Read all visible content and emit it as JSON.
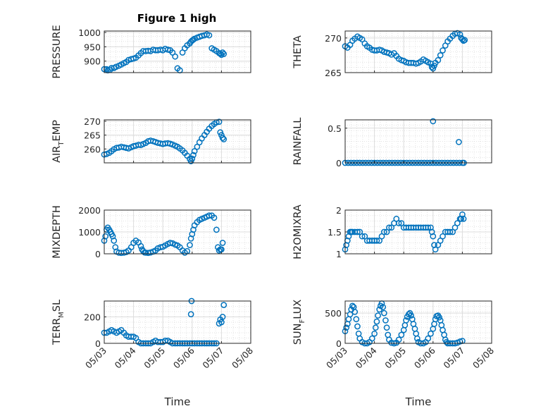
{
  "figure": {
    "title": "Figure 1 high"
  },
  "chart_data": [
    {
      "type": "scatter",
      "ylabel": "PRESSURE",
      "title": "Figure 1 high",
      "ylim": [
        860,
        1005
      ],
      "yticks": [
        900,
        950,
        1000
      ],
      "xlabel": "",
      "xticks": [
        "05/03",
        "05/04",
        "05/05",
        "05/06",
        "05/07",
        "05/08"
      ],
      "x": [
        3.0,
        3.08,
        3.12,
        3.2,
        3.25,
        3.33,
        3.4,
        3.5,
        3.58,
        3.67,
        3.75,
        3.83,
        3.92,
        4.0,
        4.08,
        4.17,
        4.25,
        4.33,
        4.42,
        4.5,
        4.58,
        4.67,
        4.75,
        4.83,
        4.92,
        5.0,
        5.08,
        5.17,
        5.25,
        5.33,
        5.42,
        5.5,
        5.58,
        5.67,
        5.75,
        5.83,
        5.92,
        5.96,
        6.0,
        6.04,
        6.08,
        6.17,
        6.25,
        6.33,
        6.42,
        6.5,
        6.58,
        6.67,
        6.75,
        6.83,
        6.92,
        6.96,
        7.0,
        7.04,
        7.08
      ],
      "y": [
        872,
        872,
        868,
        870,
        876,
        876,
        880,
        884,
        888,
        893,
        897,
        904,
        907,
        909,
        912,
        920,
        928,
        935,
        935,
        936,
        935,
        940,
        938,
        938,
        940,
        938,
        943,
        940,
        938,
        930,
        916,
        875,
        868,
        930,
        945,
        955,
        962,
        968,
        972,
        975,
        978,
        982,
        985,
        988,
        990,
        993,
        990,
        945,
        940,
        935,
        928,
        926,
        922,
        930,
        925
      ]
    },
    {
      "type": "scatter",
      "ylabel": "THETA",
      "ylim": [
        265,
        271
      ],
      "yticks": [
        265,
        270
      ],
      "xlabel": "",
      "xticks": [
        "05/03",
        "05/04",
        "05/05",
        "05/06",
        "05/07",
        "05/08"
      ],
      "x": [
        3.0,
        3.08,
        3.17,
        3.25,
        3.33,
        3.42,
        3.5,
        3.58,
        3.67,
        3.75,
        3.83,
        3.92,
        4.0,
        4.08,
        4.17,
        4.25,
        4.33,
        4.42,
        4.5,
        4.58,
        4.67,
        4.75,
        4.83,
        4.92,
        5.0,
        5.08,
        5.17,
        5.25,
        5.33,
        5.42,
        5.5,
        5.58,
        5.67,
        5.75,
        5.83,
        5.92,
        5.96,
        6.0,
        6.04,
        6.08,
        6.17,
        6.25,
        6.33,
        6.42,
        6.5,
        6.58,
        6.67,
        6.75,
        6.83,
        6.92,
        6.96,
        7.0,
        7.04,
        7.08
      ],
      "y": [
        268.8,
        268.6,
        269.0,
        269.6,
        269.9,
        270.2,
        270.0,
        269.8,
        269.2,
        268.8,
        268.6,
        268.3,
        268.2,
        268.2,
        268.3,
        268.2,
        268.0,
        267.9,
        267.8,
        267.6,
        267.8,
        267.4,
        267.0,
        266.8,
        266.7,
        266.5,
        266.4,
        266.4,
        266.4,
        266.3,
        266.4,
        266.6,
        266.9,
        266.7,
        266.5,
        266.3,
        265.8,
        265.6,
        266.0,
        266.4,
        266.8,
        267.5,
        268.2,
        268.9,
        269.5,
        269.9,
        270.3,
        270.6,
        270.7,
        270.5,
        270.0,
        269.8,
        269.6,
        269.7
      ]
    },
    {
      "type": "scatter",
      "ylabel": "AIR_TEMP",
      "ylim": [
        255,
        270.5
      ],
      "yticks": [
        260,
        265,
        270
      ],
      "xlabel": "",
      "xticks": [
        "05/03",
        "05/04",
        "05/05",
        "05/06",
        "05/07",
        "05/08"
      ],
      "x": [
        3.0,
        3.08,
        3.17,
        3.25,
        3.33,
        3.42,
        3.5,
        3.58,
        3.67,
        3.75,
        3.83,
        3.92,
        4.0,
        4.08,
        4.17,
        4.25,
        4.33,
        4.42,
        4.5,
        4.58,
        4.67,
        4.75,
        4.83,
        4.92,
        5.0,
        5.08,
        5.17,
        5.25,
        5.33,
        5.42,
        5.5,
        5.58,
        5.67,
        5.75,
        5.83,
        5.92,
        5.96,
        6.0,
        6.04,
        6.08,
        6.17,
        6.25,
        6.33,
        6.42,
        6.5,
        6.58,
        6.67,
        6.75,
        6.83,
        6.92,
        6.96,
        7.0,
        7.04,
        7.08
      ],
      "y": [
        258.0,
        258.2,
        258.6,
        259.2,
        259.9,
        260.4,
        260.5,
        260.8,
        260.6,
        260.4,
        260.2,
        260.6,
        261.0,
        261.2,
        261.5,
        261.4,
        261.8,
        262.2,
        262.8,
        263.0,
        262.8,
        262.5,
        262.2,
        262.0,
        261.8,
        262.0,
        262.1,
        261.9,
        261.6,
        261.2,
        260.8,
        260.2,
        259.5,
        258.6,
        257.6,
        256.4,
        255.6,
        256.5,
        257.8,
        259.2,
        260.8,
        262.4,
        263.8,
        265.0,
        266.2,
        267.3,
        268.3,
        269.0,
        269.6,
        269.8,
        266.0,
        265.0,
        264.0,
        263.5
      ]
    },
    {
      "type": "scatter",
      "ylabel": "RAINFALL",
      "ylim": [
        0,
        0.62
      ],
      "yticks": [
        0,
        0.5
      ],
      "xlabel": "",
      "xticks": [
        "05/03",
        "05/04",
        "05/05",
        "05/06",
        "05/07",
        "05/08"
      ],
      "x": [
        3.0,
        3.1,
        3.2,
        3.3,
        3.4,
        3.5,
        3.6,
        3.7,
        3.8,
        3.9,
        4.0,
        4.1,
        4.2,
        4.3,
        4.4,
        4.5,
        4.6,
        4.7,
        4.8,
        4.9,
        5.0,
        5.1,
        5.2,
        5.3,
        5.4,
        5.5,
        5.6,
        5.7,
        5.8,
        5.9,
        6.0,
        6.1,
        6.2,
        6.3,
        6.4,
        6.5,
        6.6,
        6.7,
        6.8,
        6.9,
        7.0,
        7.05,
        6.0,
        6.88
      ],
      "y": [
        0,
        0,
        0,
        0,
        0,
        0,
        0,
        0,
        0,
        0,
        0,
        0,
        0,
        0,
        0,
        0,
        0,
        0,
        0,
        0,
        0,
        0,
        0,
        0,
        0,
        0,
        0,
        0,
        0,
        0,
        0,
        0,
        0,
        0,
        0,
        0,
        0,
        0,
        0,
        0,
        0,
        0,
        0.6,
        0.3
      ]
    },
    {
      "type": "scatter",
      "ylabel": "MIXDEPTH",
      "ylim": [
        0,
        2000
      ],
      "yticks": [
        0,
        1000,
        2000
      ],
      "xlabel": "",
      "xticks": [
        "05/03",
        "05/04",
        "05/05",
        "05/06",
        "05/07",
        "05/08"
      ],
      "x": [
        3.0,
        3.04,
        3.08,
        3.12,
        3.17,
        3.21,
        3.25,
        3.29,
        3.33,
        3.38,
        3.42,
        3.5,
        3.58,
        3.67,
        3.75,
        3.83,
        3.92,
        4.0,
        4.08,
        4.17,
        4.25,
        4.29,
        4.33,
        4.38,
        4.42,
        4.5,
        4.58,
        4.67,
        4.75,
        4.83,
        4.92,
        5.0,
        5.08,
        5.17,
        5.25,
        5.33,
        5.42,
        5.5,
        5.58,
        5.67,
        5.75,
        5.83,
        5.92,
        5.96,
        6.0,
        6.04,
        6.08,
        6.17,
        6.25,
        6.33,
        6.42,
        6.5,
        6.58,
        6.67,
        6.75,
        6.83,
        6.88,
        6.92,
        6.96,
        7.0,
        7.04
      ],
      "y": [
        600,
        800,
        1100,
        1200,
        1100,
        1000,
        900,
        800,
        600,
        300,
        100,
        50,
        40,
        50,
        80,
        150,
        300,
        500,
        600,
        520,
        350,
        200,
        120,
        60,
        50,
        40,
        60,
        100,
        150,
        250,
        300,
        320,
        380,
        450,
        500,
        480,
        420,
        380,
        300,
        150,
        50,
        120,
        400,
        700,
        900,
        1100,
        1300,
        1450,
        1550,
        1600,
        1650,
        1700,
        1750,
        1750,
        1650,
        1100,
        300,
        150,
        200,
        200,
        500
      ]
    },
    {
      "type": "scatter",
      "ylabel": "H2OMIXRA",
      "ylim": [
        1,
        2
      ],
      "yticks": [
        1,
        1.5,
        2
      ],
      "xlabel": "",
      "xticks": [
        "05/03",
        "05/04",
        "05/05",
        "05/06",
        "05/07",
        "05/08"
      ],
      "x": [
        3.0,
        3.04,
        3.08,
        3.12,
        3.17,
        3.21,
        3.25,
        3.33,
        3.42,
        3.5,
        3.58,
        3.67,
        3.75,
        3.83,
        3.92,
        4.0,
        4.08,
        4.17,
        4.25,
        4.33,
        4.42,
        4.5,
        4.58,
        4.67,
        4.75,
        4.83,
        4.92,
        5.0,
        5.08,
        5.17,
        5.25,
        5.33,
        5.42,
        5.5,
        5.58,
        5.67,
        5.75,
        5.83,
        5.92,
        5.96,
        6.0,
        6.04,
        6.08,
        6.17,
        6.25,
        6.33,
        6.42,
        6.5,
        6.58,
        6.67,
        6.75,
        6.83,
        6.92,
        6.96,
        7.0,
        7.04
      ],
      "y": [
        1.1,
        1.2,
        1.3,
        1.4,
        1.5,
        1.5,
        1.5,
        1.5,
        1.5,
        1.5,
        1.4,
        1.4,
        1.3,
        1.3,
        1.3,
        1.3,
        1.3,
        1.3,
        1.4,
        1.5,
        1.5,
        1.6,
        1.6,
        1.7,
        1.8,
        1.7,
        1.7,
        1.6,
        1.6,
        1.6,
        1.6,
        1.6,
        1.6,
        1.6,
        1.6,
        1.6,
        1.6,
        1.6,
        1.6,
        1.5,
        1.4,
        1.2,
        1.1,
        1.2,
        1.3,
        1.4,
        1.5,
        1.5,
        1.5,
        1.5,
        1.6,
        1.7,
        1.8,
        1.8,
        1.9,
        1.8
      ]
    },
    {
      "type": "scatter",
      "ylabel": "TERR_MSL",
      "ylim": [
        0,
        320
      ],
      "yticks": [
        0,
        200
      ],
      "xlabel": "Time",
      "xticks": [
        "05/03",
        "05/04",
        "05/05",
        "05/06",
        "05/07",
        "05/08"
      ],
      "x": [
        3.0,
        3.08,
        3.17,
        3.25,
        3.33,
        3.42,
        3.5,
        3.58,
        3.67,
        3.75,
        3.83,
        3.92,
        4.0,
        4.08,
        4.17,
        4.25,
        4.33,
        4.42,
        4.5,
        4.58,
        4.67,
        4.75,
        4.83,
        4.92,
        5.0,
        5.08,
        5.17,
        5.25,
        5.33,
        5.42,
        5.5,
        5.58,
        5.67,
        5.75,
        5.83,
        5.92,
        6.0,
        6.08,
        6.17,
        6.25,
        6.33,
        6.42,
        6.5,
        6.58,
        6.67,
        6.75,
        6.83,
        5.96,
        5.98,
        6.92,
        6.96,
        7.0,
        7.04,
        7.08
      ],
      "y": [
        80,
        80,
        90,
        100,
        90,
        80,
        90,
        100,
        80,
        60,
        50,
        50,
        50,
        40,
        10,
        0,
        0,
        0,
        0,
        0,
        10,
        20,
        10,
        10,
        10,
        20,
        20,
        10,
        0,
        0,
        0,
        0,
        0,
        0,
        0,
        0,
        0,
        0,
        0,
        0,
        0,
        0,
        0,
        0,
        0,
        0,
        0,
        220,
        320,
        150,
        180,
        160,
        200,
        290
      ]
    },
    {
      "type": "scatter",
      "ylabel": "SUN_FLUX",
      "ylim": [
        0,
        700
      ],
      "yticks": [
        0,
        500
      ],
      "xlabel": "Time",
      "xticks": [
        "05/03",
        "05/04",
        "05/05",
        "05/06",
        "05/07",
        "05/08"
      ],
      "x": [
        3.0,
        3.04,
        3.08,
        3.12,
        3.17,
        3.21,
        3.25,
        3.29,
        3.33,
        3.38,
        3.42,
        3.46,
        3.5,
        3.58,
        3.67,
        3.75,
        3.83,
        3.92,
        4.0,
        4.04,
        4.08,
        4.12,
        4.17,
        4.21,
        4.25,
        4.29,
        4.33,
        4.38,
        4.42,
        4.46,
        4.5,
        4.58,
        4.67,
        4.75,
        4.83,
        4.92,
        5.0,
        5.04,
        5.08,
        5.12,
        5.17,
        5.21,
        5.25,
        5.29,
        5.33,
        5.38,
        5.42,
        5.46,
        5.5,
        5.58,
        5.67,
        5.75,
        5.83,
        5.92,
        6.0,
        6.04,
        6.08,
        6.12,
        6.17,
        6.21,
        6.25,
        6.29,
        6.33,
        6.38,
        6.42,
        6.46,
        6.5,
        6.58,
        6.67,
        6.75,
        6.83,
        6.92,
        7.0
      ],
      "y": [
        200,
        260,
        320,
        400,
        480,
        560,
        620,
        600,
        520,
        400,
        280,
        160,
        80,
        20,
        0,
        0,
        20,
        80,
        160,
        260,
        360,
        460,
        560,
        620,
        660,
        600,
        500,
        380,
        260,
        140,
        60,
        10,
        0,
        10,
        60,
        140,
        220,
        300,
        380,
        440,
        480,
        500,
        460,
        400,
        320,
        240,
        160,
        80,
        20,
        0,
        0,
        20,
        80,
        160,
        240,
        320,
        400,
        450,
        460,
        430,
        380,
        300,
        220,
        140,
        60,
        20,
        0,
        0,
        0,
        0,
        10,
        30,
        40
      ]
    }
  ]
}
